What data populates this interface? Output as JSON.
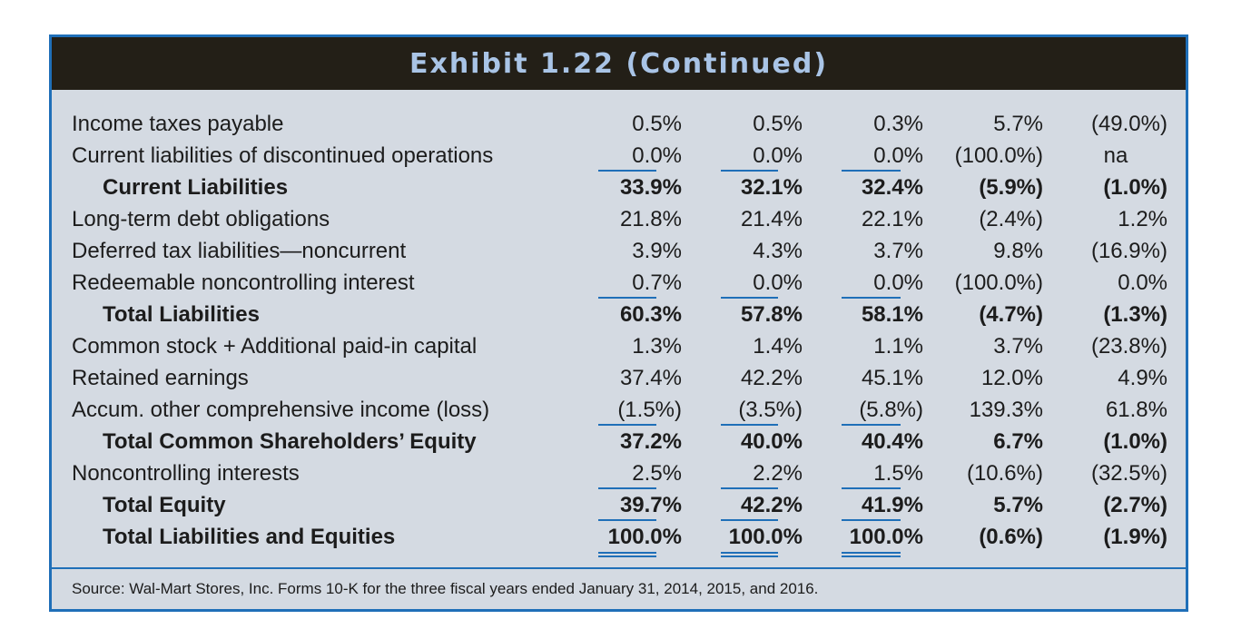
{
  "exhibit": {
    "title": "Exhibit 1.22 (Continued)",
    "rows": [
      {
        "label": "Income taxes payable",
        "v1": "0.5%",
        "v2": "0.5%",
        "v3": "0.3%",
        "v4": "5.7%",
        "v5": "(49.0%)"
      },
      {
        "label": "Current liabilities of discontinued operations",
        "v1": "0.0%",
        "v2": "0.0%",
        "v3": "0.0%",
        "v4": "(100.0%)",
        "v5": "na"
      },
      {
        "label": "Current Liabilities",
        "v1": "33.9%",
        "v2": "32.1%",
        "v3": "32.4%",
        "v4": "(5.9%)",
        "v5": "(1.0%)"
      },
      {
        "label": "Long-term debt obligations",
        "v1": "21.8%",
        "v2": "21.4%",
        "v3": "22.1%",
        "v4": "(2.4%)",
        "v5": "1.2%"
      },
      {
        "label": "Deferred tax liabilities—noncurrent",
        "v1": "3.9%",
        "v2": "4.3%",
        "v3": "3.7%",
        "v4": "9.8%",
        "v5": "(16.9%)"
      },
      {
        "label": "Redeemable noncontrolling interest",
        "v1": "0.7%",
        "v2": "0.0%",
        "v3": "0.0%",
        "v4": "(100.0%)",
        "v5": "0.0%"
      },
      {
        "label": "Total Liabilities",
        "v1": "60.3%",
        "v2": "57.8%",
        "v3": "58.1%",
        "v4": "(4.7%)",
        "v5": "(1.3%)"
      },
      {
        "label": "Common stock + Additional paid-in capital",
        "v1": "1.3%",
        "v2": "1.4%",
        "v3": "1.1%",
        "v4": "3.7%",
        "v5": "(23.8%)"
      },
      {
        "label": "Retained earnings",
        "v1": "37.4%",
        "v2": "42.2%",
        "v3": "45.1%",
        "v4": "12.0%",
        "v5": "4.9%"
      },
      {
        "label": "Accum. other comprehensive income (loss)",
        "v1": "(1.5%)",
        "v2": "(3.5%)",
        "v3": "(5.8%)",
        "v4": "139.3%",
        "v5": "61.8%"
      },
      {
        "label": "Total Common Shareholders’ Equity",
        "v1": "37.2%",
        "v2": "40.0%",
        "v3": "40.4%",
        "v4": "6.7%",
        "v5": "(1.0%)"
      },
      {
        "label": "Noncontrolling interests",
        "v1": "2.5%",
        "v2": "2.2%",
        "v3": "1.5%",
        "v4": "(10.6%)",
        "v5": "(32.5%)"
      },
      {
        "label": "Total Equity",
        "v1": "39.7%",
        "v2": "42.2%",
        "v3": "41.9%",
        "v4": "5.7%",
        "v5": "(2.7%)"
      },
      {
        "label": "Total Liabilities and Equities",
        "v1": "100.0%",
        "v2": "100.0%",
        "v3": "100.0%",
        "v4": "(0.6%)",
        "v5": "(1.9%)"
      }
    ],
    "source": "Source: Wal-Mart Stores, Inc. Forms 10-K for the three fiscal years ended January 31, 2014, 2015, and 2016.",
    "colors": {
      "title_background": "#231f17",
      "title_text": "#a9c4e6",
      "panel_background": "#d4dae2",
      "accent_rule": "#1f6fb8"
    }
  }
}
